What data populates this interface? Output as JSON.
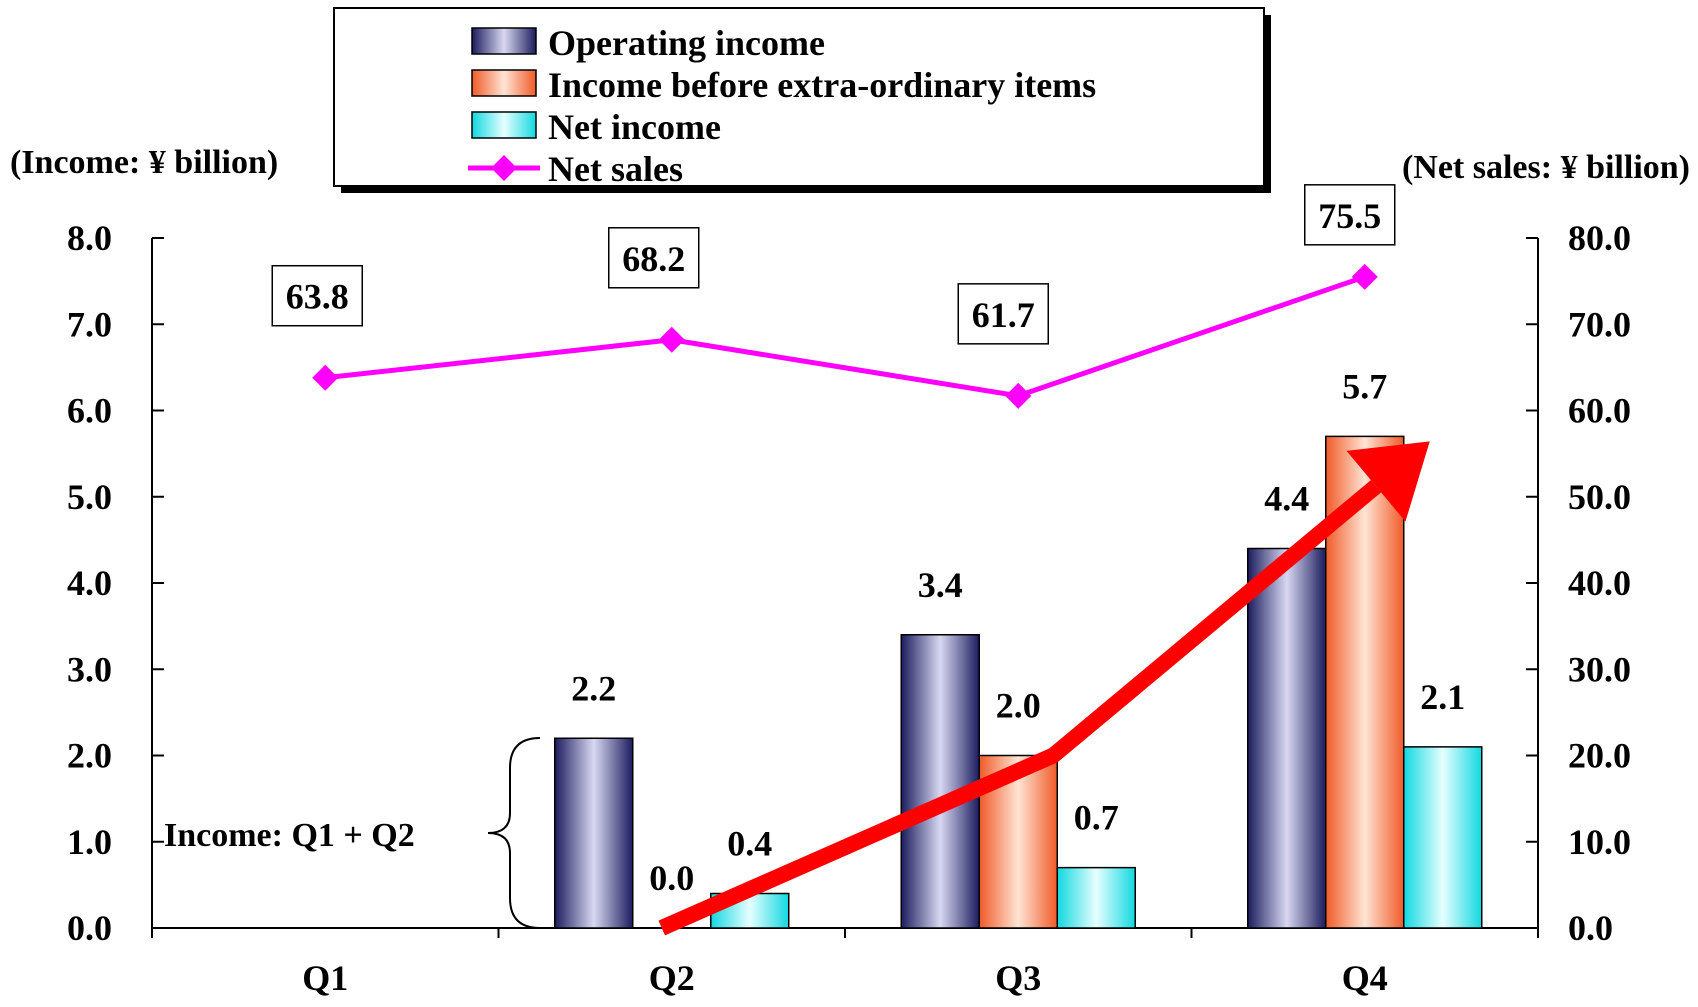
{
  "chart_data": {
    "type": "bar",
    "categories": [
      "Q1",
      "Q2",
      "Q3",
      "Q4"
    ],
    "left_axis": {
      "label": "(Income: ¥ billion)",
      "ylim": [
        0,
        8
      ],
      "ticks": [
        "0.0",
        "1.0",
        "2.0",
        "3.0",
        "4.0",
        "5.0",
        "6.0",
        "7.0",
        "8.0"
      ]
    },
    "right_axis": {
      "label": "(Net sales: ¥ billion)",
      "ylim": [
        0,
        80
      ],
      "ticks": [
        "0.0",
        "10.0",
        "20.0",
        "30.0",
        "40.0",
        "50.0",
        "60.0",
        "70.0",
        "80.0"
      ]
    },
    "series": [
      {
        "name": "Operating income",
        "kind": "bar",
        "axis": "left",
        "color": "#1c1c5e",
        "values": [
          null,
          2.2,
          3.4,
          4.4
        ],
        "labels": [
          "",
          "2.2",
          "3.4",
          "4.4"
        ]
      },
      {
        "name": "Income before extra-ordinary items",
        "kind": "bar",
        "axis": "left",
        "color": "#f05a28",
        "values": [
          null,
          0.0,
          2.0,
          5.7
        ],
        "labels": [
          "",
          "0.0",
          "2.0",
          "5.7"
        ]
      },
      {
        "name": "Net income",
        "kind": "bar",
        "axis": "left",
        "color": "#12d8e0",
        "values": [
          null,
          0.4,
          0.7,
          2.1
        ],
        "labels": [
          "",
          "0.4",
          "0.7",
          "2.1"
        ]
      },
      {
        "name": "Net sales",
        "kind": "line",
        "axis": "right",
        "color": "#ff00ff",
        "values": [
          63.8,
          68.2,
          61.7,
          75.5
        ],
        "labels": [
          "63.8",
          "68.2",
          "61.7",
          "75.5"
        ]
      }
    ],
    "legend": {
      "placement": "top-center",
      "items": [
        "Operating income",
        "Income before extra-ordinary items",
        "Net income",
        "Net sales"
      ]
    },
    "annotations": [
      {
        "text": "Income: Q1 + Q2",
        "kind": "brace",
        "category": "Q2"
      },
      {
        "kind": "arrow",
        "color": "#ff0000",
        "path_values": [
          [
            1,
            0.0
          ],
          [
            2,
            2.0
          ],
          [
            3,
            5.7
          ]
        ]
      }
    ],
    "grid": false
  }
}
